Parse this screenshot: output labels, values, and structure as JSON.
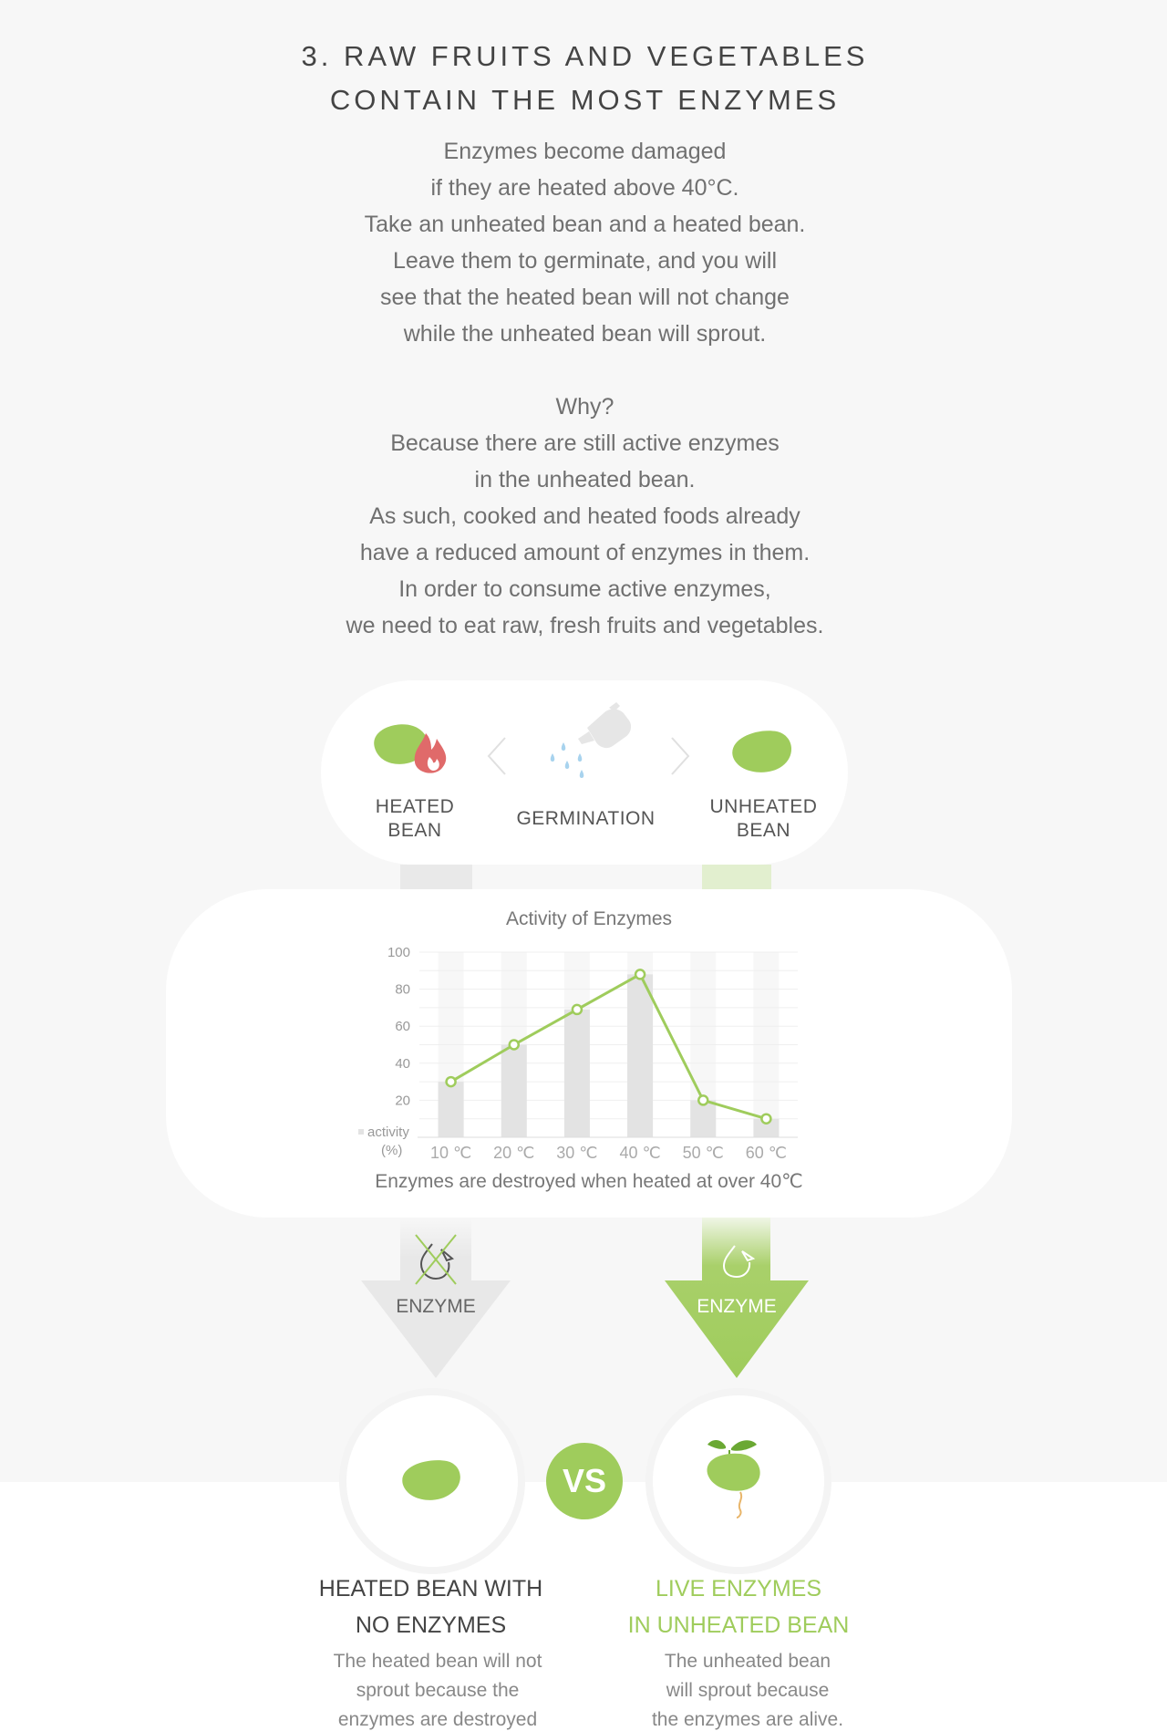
{
  "title": {
    "line1": "3. RAW FRUITS AND VEGETABLES",
    "line2": "CONTAIN THE MOST ENZYMES"
  },
  "intro": {
    "lines": [
      "Enzymes become damaged",
      "if they are heated above 40°C.",
      "Take an unheated bean and a heated bean.",
      "Leave them to germinate, and you will",
      "see that the heated bean will not change",
      "while the unheated bean will sprout.",
      "",
      "Why?",
      "Because there are still active enzymes",
      "in the unheated bean.",
      "As such, cooked and heated foods already",
      "have a reduced amount of enzymes in them.",
      "In order to consume active enzymes,",
      "we need to eat raw, fresh fruits and vegetables."
    ]
  },
  "germination": {
    "heated_line1": "HEATED",
    "heated_line2": "BEAN",
    "middle": "GERMINATION",
    "unheated_line1": "UNHEATED",
    "unheated_line2": "BEAN"
  },
  "chart_data": {
    "type": "bar",
    "title": "Activity of Enzymes",
    "caption": "Enzymes are destroyed when heated at over 40℃",
    "legend_label": "activity",
    "unit_label": "(%)",
    "categories": [
      "10 ℃",
      "20 ℃",
      "30 ℃",
      "40 ℃",
      "50 ℃",
      "60 ℃"
    ],
    "values": [
      30,
      50,
      69,
      88,
      20,
      10
    ],
    "ylim": [
      0,
      100
    ],
    "yticks": [
      20,
      40,
      60,
      80,
      100
    ],
    "grid": true,
    "bar_color": "#e3e3e3",
    "line_color": "#9fcc5c"
  },
  "arrows": {
    "left_label": "ENZYME",
    "right_label": "ENZYME"
  },
  "vs_label": "VS",
  "results": {
    "left_title1": "HEATED BEAN WITH",
    "left_title2": "NO ENZYMES",
    "left_text1": "The heated bean will not",
    "left_text2": "sprout because the",
    "left_text3": "enzymes are destroyed",
    "right_title1": "LIVE ENZYMES",
    "right_title2": "IN UNHEATED BEAN",
    "right_text1": "The unheated bean",
    "right_text2": "will sprout because",
    "right_text3": "the enzymes are alive."
  },
  "colors": {
    "green": "#9fcc5c",
    "gray": "#e6e6e6",
    "flame": "#e06a6a",
    "water": "#a8d3ee"
  }
}
